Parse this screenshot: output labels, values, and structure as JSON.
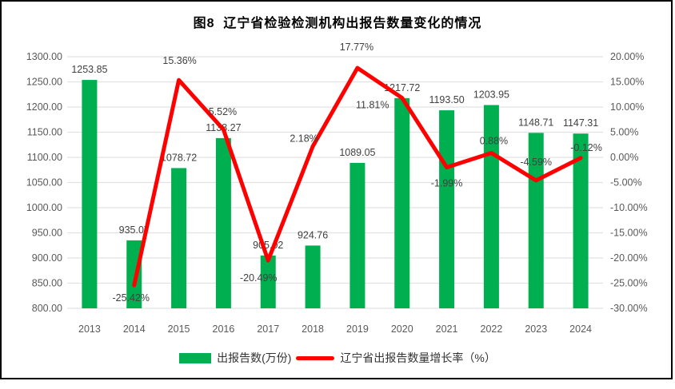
{
  "chart_data": {
    "type": "bar+line",
    "title": "图8  辽宁省检验检测机构出报告数量变化的情况",
    "categories": [
      "2013",
      "2014",
      "2015",
      "2016",
      "2017",
      "2018",
      "2019",
      "2020",
      "2021",
      "2022",
      "2023",
      "2024"
    ],
    "series": [
      {
        "name": "出报告数(万份)",
        "type": "bar",
        "axis": "left",
        "values": [
          1253.85,
          935.07,
          1078.72,
          1138.27,
          905.02,
          924.76,
          1089.05,
          1217.72,
          1193.5,
          1203.95,
          1148.71,
          1147.31
        ],
        "labels": [
          "1253.85",
          "935.07",
          "1078.72",
          "1138.27",
          "905.02",
          "924.76",
          "1089.05",
          "1217.72",
          "1193.50",
          "1203.95",
          "1148.71",
          "1147.31"
        ]
      },
      {
        "name": "辽宁省出报告数量增长率（%）",
        "type": "line",
        "axis": "right",
        "values": [
          null,
          -25.42,
          15.36,
          5.52,
          -20.49,
          2.18,
          17.77,
          11.81,
          -1.99,
          0.88,
          -4.59,
          -0.12
        ],
        "labels": [
          null,
          "-25.42%",
          "15.36%",
          "5.52%",
          "-20.49%",
          "2.18%",
          "17.77%",
          "11.81%",
          "-1.99%",
          "0.88%",
          "-4.59%",
          "-0.12%"
        ]
      }
    ],
    "left_axis": {
      "min": 800,
      "max": 1300,
      "step": 50,
      "tick_labels": [
        "1300.00",
        "1250.00",
        "1200.00",
        "1150.00",
        "1100.00",
        "1050.00",
        "1000.00",
        "950.00",
        "900.00",
        "850.00",
        "800.00"
      ]
    },
    "right_axis": {
      "min": -30,
      "max": 20,
      "step": 5,
      "tick_labels": [
        "20.00%",
        "15.00%",
        "10.00%",
        "5.00%",
        "0.00%",
        "-5.00%",
        "-10.00%",
        "-15.00%",
        "-20.00%",
        "-25.00%",
        "-30.00%"
      ]
    },
    "grid": true,
    "legend_position": "bottom",
    "colors": {
      "bar": "#00B050",
      "line": "#FF0000",
      "gridline": "#E2E2E2",
      "axis_text": "#595959",
      "data_label": "#404040",
      "title": "#000000"
    }
  }
}
